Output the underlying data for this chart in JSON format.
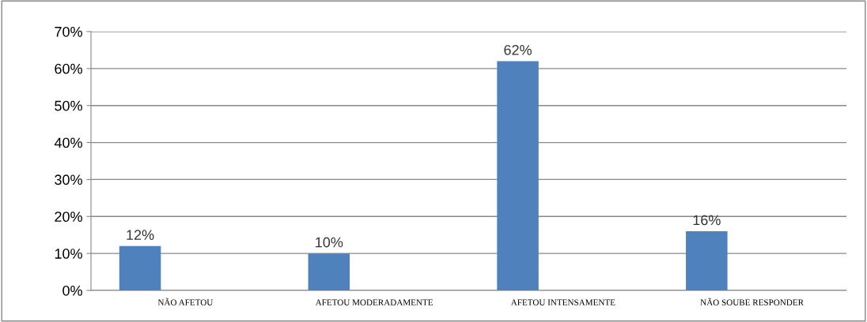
{
  "chart_data": {
    "type": "bar",
    "categories": [
      "NÃO AFETOU",
      "AFETOU MODERADAMENTE",
      "AFETOU INTENSAMENTE",
      "NÃO SOUBE RESPONDER"
    ],
    "values": [
      12,
      10,
      62,
      16
    ],
    "value_labels": [
      "12%",
      "10%",
      "62%",
      "16%"
    ],
    "color": "#4f81bd",
    "ylim": [
      0,
      70
    ],
    "yticks": [
      {
        "value": 0,
        "label": "0%"
      },
      {
        "value": 10,
        "label": "10%"
      },
      {
        "value": 20,
        "label": "20%"
      },
      {
        "value": 30,
        "label": "30%"
      },
      {
        "value": 40,
        "label": "40%"
      },
      {
        "value": 50,
        "label": "50%"
      },
      {
        "value": 60,
        "label": "60%"
      },
      {
        "value": 70,
        "label": "70%"
      }
    ],
    "grid": "y"
  }
}
